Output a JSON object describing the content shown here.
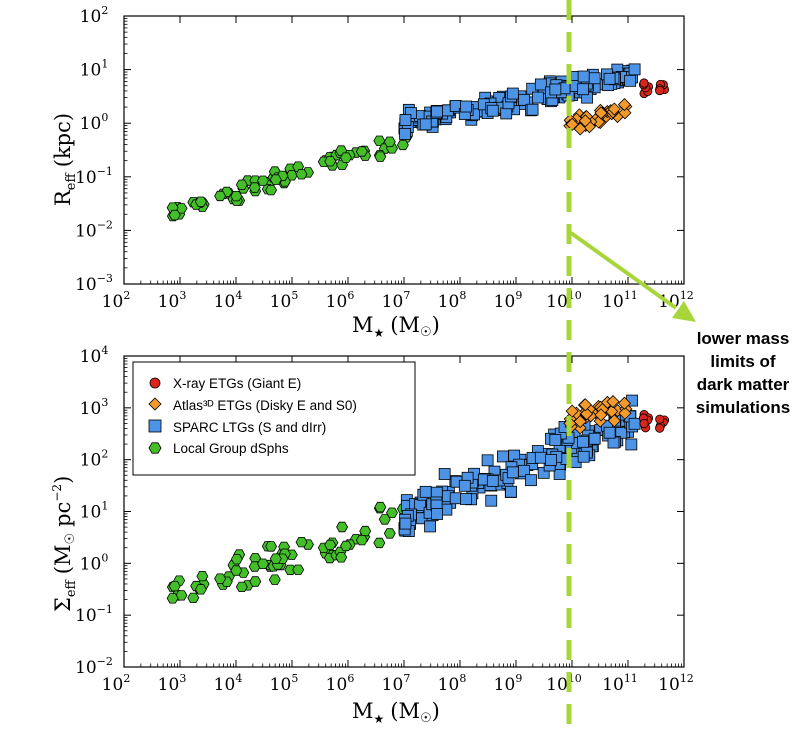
{
  "chart_data": [
    {
      "type": "scatter",
      "panel": "top",
      "xlabel": "M★ (M☉)",
      "ylabel": "Reff (kpc)",
      "xscale": "log",
      "yscale": "log",
      "xlim": [
        2,
        12
      ],
      "ylim": [
        -3,
        2
      ],
      "xtick_exponents": [
        2,
        3,
        4,
        5,
        6,
        7,
        8,
        9,
        10,
        11,
        12
      ],
      "ytick_exponents": [
        -3,
        -2,
        -1,
        0,
        1,
        2
      ]
    },
    {
      "type": "scatter",
      "panel": "bottom",
      "xlabel": "M★ (M☉)",
      "ylabel": "Σeff (M☉ pc⁻²)",
      "xscale": "log",
      "yscale": "log",
      "xlim": [
        2,
        12
      ],
      "ylim": [
        -2,
        4
      ],
      "xtick_exponents": [
        2,
        3,
        4,
        5,
        6,
        7,
        8,
        9,
        10,
        11,
        12
      ],
      "ytick_exponents": [
        -2,
        -1,
        0,
        1,
        2,
        3,
        4
      ],
      "legend_position": "top-left"
    }
  ],
  "legend": [
    {
      "label": "X-ray  ETGs (Giant E)",
      "marker": "circle",
      "color": "#d9261c"
    },
    {
      "label": "Atlas³ᴰ ETGs (Disky E and S0)",
      "marker": "diamond",
      "color": "#f39a2b"
    },
    {
      "label": "SPARC LTGs (S and dIrr)",
      "marker": "square",
      "color": "#4d94e6"
    },
    {
      "label": "Local Group dSphs",
      "marker": "hexagon",
      "color": "#44bf2a"
    }
  ],
  "annotation": {
    "lines": [
      "lower mass",
      "limits of",
      "dark matter",
      "simulations"
    ],
    "cutoff_log_mass": 10,
    "color": "#a8d63a"
  },
  "labels": {
    "top_x_main": "M",
    "top_x_sub": "★",
    "top_x_unit": "(M",
    "top_x_sun": "☉",
    "top_x_close": ")",
    "top_y_main": "R",
    "top_y_sub": "eff",
    "top_y_unit": "(kpc)",
    "bot_x_main": "M",
    "bot_x_sub": "★",
    "bot_x_unit": "(M",
    "bot_x_sun": "☉",
    "bot_x_close": ")",
    "bot_y_main": "Σ",
    "bot_y_sub": "eff",
    "bot_y_unit": "(M",
    "bot_y_sun": "☉",
    "bot_y_pc": "pc",
    "bot_y_exp": "−2",
    "bot_y_close": ")"
  },
  "tick_base": "10",
  "colors": {
    "dsph": "#44bf2a",
    "sparc": "#4d94e6",
    "atlas": "#f39a2b",
    "xray": "#d9261c",
    "cutoff": "#a8d63a"
  }
}
